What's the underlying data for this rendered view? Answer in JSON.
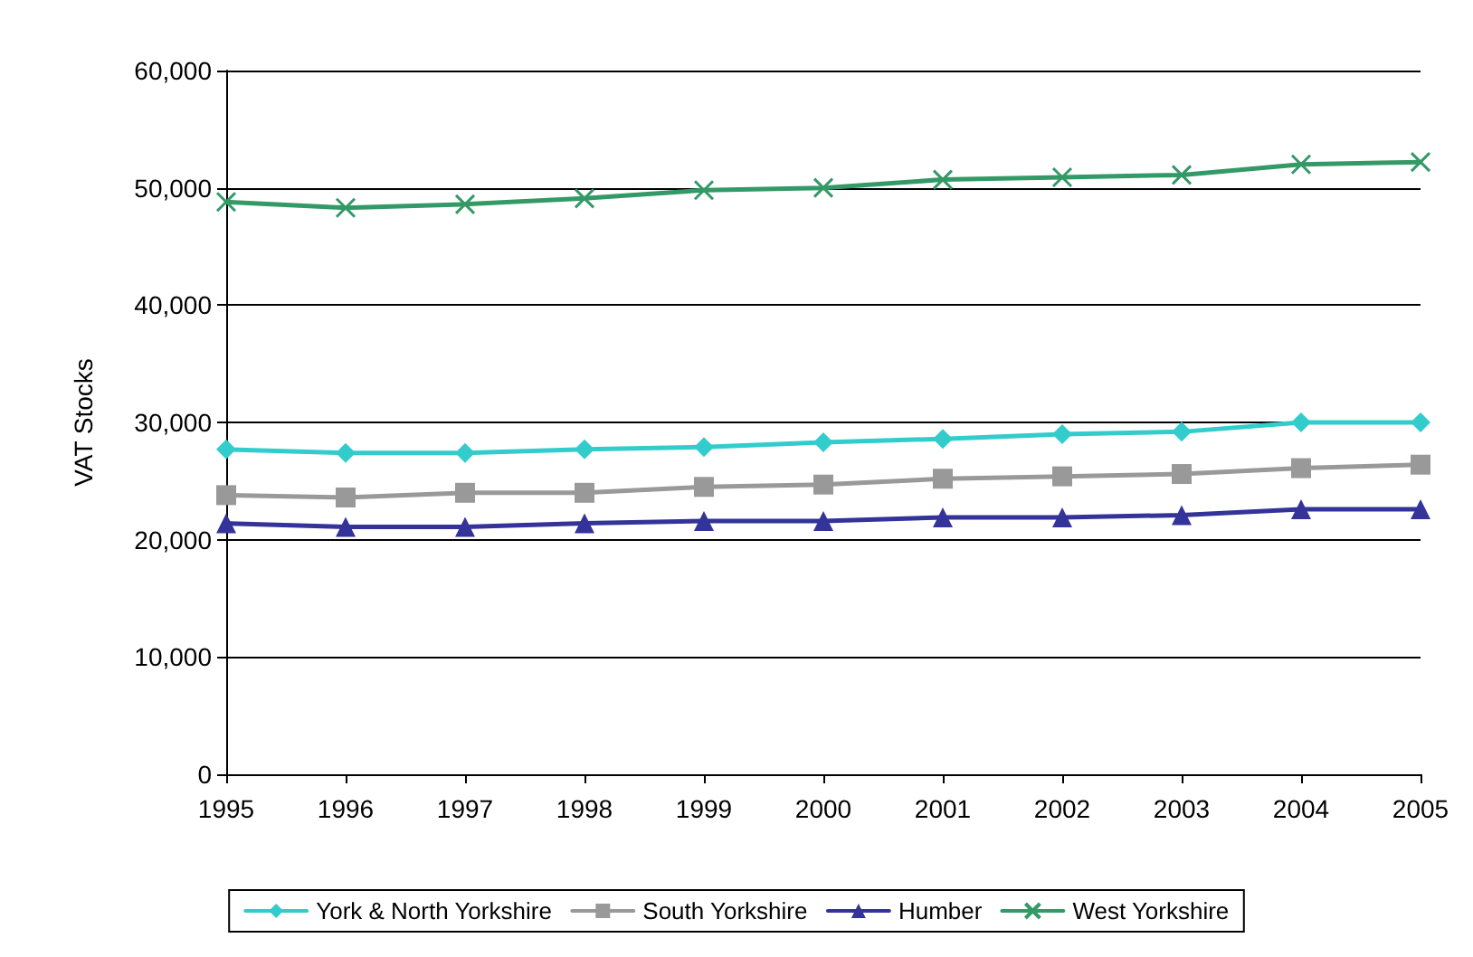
{
  "chart_data": {
    "type": "line",
    "ylabel": "VAT Stocks",
    "categories": [
      "1995",
      "1996",
      "1997",
      "1998",
      "1999",
      "2000",
      "2001",
      "2002",
      "2003",
      "2004",
      "2005"
    ],
    "series": [
      {
        "name": "York & North Yorkshire",
        "color": "#33cccc",
        "marker": "diamond",
        "values": [
          27700,
          27400,
          27400,
          27700,
          27900,
          28300,
          28600,
          29000,
          29200,
          30000,
          30000
        ]
      },
      {
        "name": "South Yorkshire",
        "color": "#999999",
        "marker": "square",
        "values": [
          23800,
          23600,
          24000,
          24000,
          24500,
          24700,
          25200,
          25400,
          25600,
          26100,
          26400
        ]
      },
      {
        "name": "Humber",
        "color": "#333399",
        "marker": "triangle",
        "values": [
          21400,
          21100,
          21100,
          21400,
          21600,
          21600,
          21900,
          21900,
          22100,
          22600,
          22600
        ]
      },
      {
        "name": "West Yorkshire",
        "color": "#339966",
        "marker": "cross",
        "values": [
          48800,
          48300,
          48600,
          49100,
          49800,
          50000,
          50700,
          50900,
          51100,
          52000,
          52200
        ]
      }
    ],
    "ylim": [
      0,
      60000
    ],
    "yticks": [
      0,
      {
        "value": 10000,
        "label": "10,000"
      },
      {
        "value": 20000,
        "label": "20,000"
      },
      {
        "value": 30000,
        "label": "30,000"
      },
      {
        "value": 40000,
        "label": "40,000"
      },
      {
        "value": 50000,
        "label": "50,000"
      },
      {
        "value": 60000,
        "label": "60,000"
      }
    ],
    "grid": "y",
    "legend": "bottom",
    "line_style": "solid"
  }
}
